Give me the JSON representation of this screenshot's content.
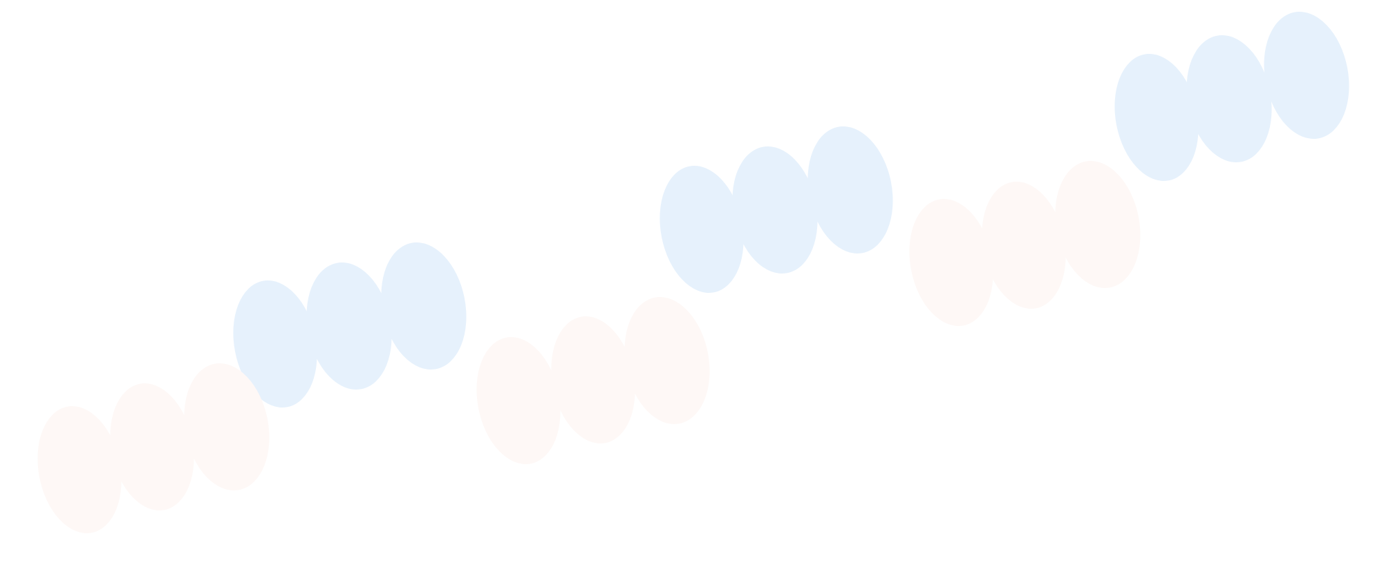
{
  "colors": {
    "background": "#ffffff",
    "blue_cloud": "#e6f1fc",
    "peach_cloud": "#fef8f6"
  },
  "shapes": [
    {
      "kind": "cloud",
      "color": "blue"
    },
    {
      "kind": "cloud",
      "color": "blue"
    },
    {
      "kind": "cloud",
      "color": "blue"
    },
    {
      "kind": "cloud",
      "color": "peach"
    },
    {
      "kind": "cloud",
      "color": "peach"
    },
    {
      "kind": "cloud",
      "color": "peach"
    }
  ]
}
